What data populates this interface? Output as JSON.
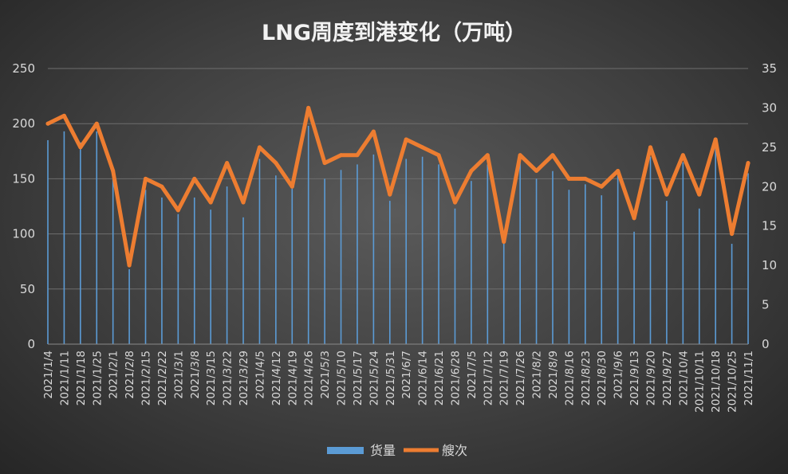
{
  "chart_data": {
    "type": "bar",
    "title": "LNG周度到港变化（万吨）",
    "categories": [
      "2021/1/4",
      "2021/1/11",
      "2021/1/18",
      "2021/1/25",
      "2021/2/1",
      "2021/2/8",
      "2021/2/15",
      "2021/2/22",
      "2021/3/1",
      "2021/3/8",
      "2021/3/15",
      "2021/3/22",
      "2021/3/29",
      "2021/4/5",
      "2021/4/12",
      "2021/4/19",
      "2021/4/26",
      "2021/5/3",
      "2021/5/10",
      "2021/5/17",
      "2021/5/24",
      "2021/5/31",
      "2021/6/7",
      "2021/6/14",
      "2021/6/21",
      "2021/6/28",
      "2021/7/5",
      "2021/7/12",
      "2021/7/19",
      "2021/7/26",
      "2021/8/2",
      "2021/8/9",
      "2021/8/16",
      "2021/8/23",
      "2021/8/30",
      "2021/9/6",
      "2021/9/13",
      "2021/9/20",
      "2021/9/27",
      "2021/10/4",
      "2021/10/11",
      "2021/10/18",
      "2021/10/25",
      "2021/11/1"
    ],
    "series": [
      {
        "name": "货量",
        "type": "bar",
        "axis": "left",
        "color": "#5b9bd5",
        "values": [
          185,
          193,
          183,
          193,
          150,
          68,
          140,
          133,
          118,
          133,
          122,
          143,
          115,
          168,
          153,
          141,
          198,
          150,
          158,
          163,
          172,
          130,
          168,
          170,
          163,
          123,
          148,
          163,
          92,
          167,
          150,
          157,
          140,
          145,
          135,
          153,
          102,
          170,
          130,
          165,
          123,
          178,
          91,
          155
        ]
      },
      {
        "name": "艘次",
        "type": "line",
        "axis": "right",
        "color": "#ed7d31",
        "values": [
          28,
          29,
          25,
          28,
          22,
          10,
          21,
          20,
          17,
          21,
          18,
          23,
          18,
          25,
          23,
          20,
          30,
          23,
          24,
          24,
          27,
          19,
          26,
          25,
          24,
          18,
          22,
          24,
          13,
          24,
          22,
          24,
          21,
          21,
          20,
          22,
          16,
          25,
          19,
          24,
          19,
          26,
          14,
          23
        ]
      }
    ],
    "y_left": {
      "min": 0,
      "max": 250,
      "ticks": [
        "0",
        "50",
        "100",
        "150",
        "200",
        "250"
      ]
    },
    "y_right": {
      "min": 0,
      "max": 35,
      "ticks": [
        "0",
        "5",
        "10",
        "15",
        "20",
        "25",
        "30",
        "35"
      ]
    },
    "grid": true,
    "legend_position": "bottom"
  }
}
